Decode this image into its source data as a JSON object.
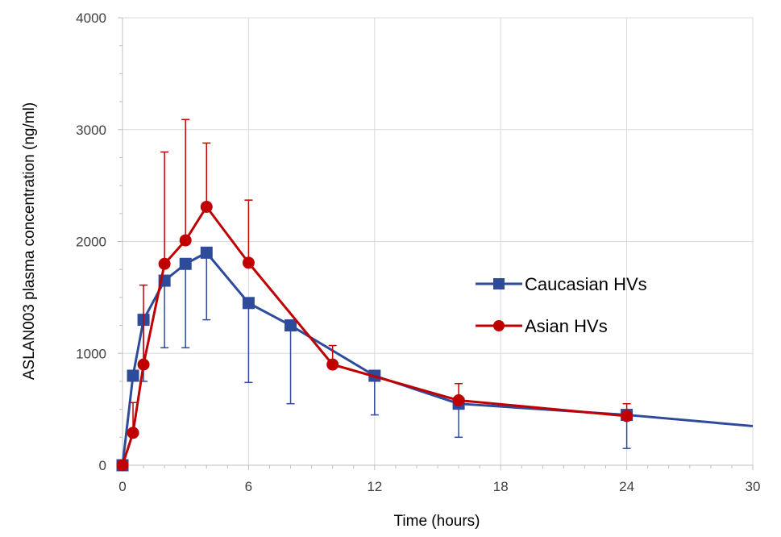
{
  "chart_data": {
    "type": "line",
    "title": "",
    "xlabel": "Time (hours)",
    "ylabel": "ASLAN003 plasma concentration (ng/ml)",
    "xlim": [
      0,
      30
    ],
    "ylim": [
      0,
      4000
    ],
    "x_ticks": [
      0,
      6,
      12,
      18,
      24,
      30
    ],
    "x_tick_labels": [
      "0",
      "6",
      "12",
      "18",
      "24",
      "30"
    ],
    "y_ticks": [
      0,
      1000,
      2000,
      3000,
      4000
    ],
    "y_tick_labels": [
      "0",
      "1000",
      "2000",
      "3000",
      "4000"
    ],
    "grid": true,
    "legend_position": "right",
    "series": [
      {
        "name": "Caucasian HVs",
        "color": "#2E4A9B",
        "marker": "square",
        "points": [
          {
            "x": 0,
            "y": 0
          },
          {
            "x": 0.5,
            "y": 800
          },
          {
            "x": 1,
            "y": 1300,
            "err_low": 750
          },
          {
            "x": 2,
            "y": 1650,
            "err_low": 1050
          },
          {
            "x": 3,
            "y": 1800,
            "err_low": 1050
          },
          {
            "x": 4,
            "y": 1900,
            "err_low": 1300
          },
          {
            "x": 6,
            "y": 1450,
            "err_low": 740
          },
          {
            "x": 8,
            "y": 1250,
            "err_low": 550
          },
          {
            "x": 12,
            "y": 800,
            "err_low": 450
          },
          {
            "x": 16,
            "y": 550,
            "err_low": 250
          },
          {
            "x": 24,
            "y": 450,
            "err_low": 150
          }
        ],
        "extension_to": {
          "x": 30,
          "y": 350
        }
      },
      {
        "name": "Asian HVs",
        "color": "#C00000",
        "marker": "circle",
        "points": [
          {
            "x": 0,
            "y": 0
          },
          {
            "x": 0.5,
            "y": 290,
            "err_high": 560
          },
          {
            "x": 1,
            "y": 900,
            "err_high": 1610
          },
          {
            "x": 2,
            "y": 1800,
            "err_high": 2800
          },
          {
            "x": 3,
            "y": 2010,
            "err_high": 3090
          },
          {
            "x": 4,
            "y": 2310,
            "err_high": 2880
          },
          {
            "x": 6,
            "y": 1810,
            "err_high": 2370
          },
          {
            "x": 10,
            "y": 900,
            "err_high": 1070
          },
          {
            "x": 16,
            "y": 580,
            "err_high": 730
          },
          {
            "x": 24,
            "y": 440,
            "err_high": 550
          }
        ]
      }
    ]
  }
}
